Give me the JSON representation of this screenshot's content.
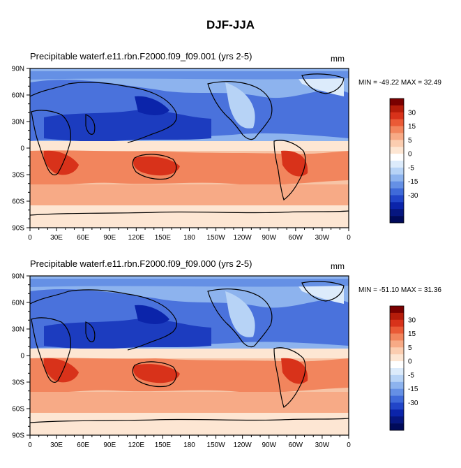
{
  "figure": {
    "title": "DJF-JJA"
  },
  "colorbar": {
    "colors": [
      "#7a0000",
      "#b51c0a",
      "#d8321a",
      "#ea5a36",
      "#f2855d",
      "#f7aa86",
      "#fbcdb0",
      "#fde6d3",
      "#ffffff",
      "#dcebfb",
      "#b7d3f6",
      "#8db3ee",
      "#6590e5",
      "#3f6ad9",
      "#2145c8",
      "#0b24aa",
      "#061680",
      "#000a5a"
    ],
    "labels": [
      "30",
      "15",
      "5",
      "0",
      "-5",
      "-15",
      "-30"
    ]
  },
  "panels": [
    {
      "title": "Precipitable waterf.e11.rbn.F2000.f09_f09.001 (yrs 2-5)",
      "units": "mm",
      "minmax": "MIN = -49.22 MAX =  32.49"
    },
    {
      "title": "Precipitable waterf.e11.rbn.F2000.f09_f09.000 (yrs 2-5)",
      "units": "mm",
      "minmax": "MIN = -51.10 MAX =  31.36"
    }
  ],
  "axes": {
    "lat_labels": [
      "90N",
      "60N",
      "30N",
      "0",
      "30S",
      "60S",
      "90S"
    ],
    "lon_labels": [
      "0",
      "30E",
      "60E",
      "90E",
      "120E",
      "150E",
      "180",
      "150W",
      "120W",
      "90W",
      "60W",
      "30W",
      "0"
    ]
  }
}
